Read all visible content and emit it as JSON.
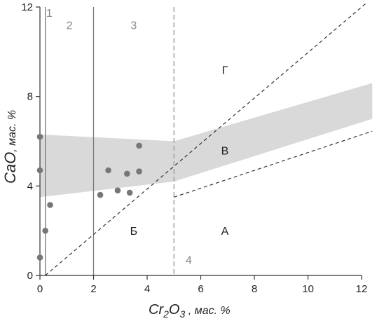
{
  "chart_data": {
    "type": "scatter",
    "xlim": [
      0,
      12
    ],
    "ylim": [
      0,
      12
    ],
    "x_ticks": [
      0,
      2,
      4,
      6,
      8,
      10,
      12
    ],
    "y_ticks": [
      0,
      4,
      8,
      12
    ],
    "x_tick_labels": [
      "0",
      "2",
      "4",
      "6",
      "8",
      "10",
      "12"
    ],
    "y_tick_labels": [
      "0",
      "4",
      "8",
      "12"
    ],
    "xlabel_main": "Cr",
    "xlabel_sub": "2",
    "xlabel_main2": "O",
    "xlabel_sub2": "3",
    "xlabel_suffix": " , мас. %",
    "ylabel_main": "CaO",
    "ylabel_suffix": ", мас. %",
    "points": [
      {
        "x": 0.0,
        "y": 6.2
      },
      {
        "x": 0.0,
        "y": 4.7
      },
      {
        "x": 0.0,
        "y": 0.8
      },
      {
        "x": 0.2,
        "y": 2.0
      },
      {
        "x": 0.38,
        "y": 3.15
      },
      {
        "x": 2.25,
        "y": 3.6
      },
      {
        "x": 2.55,
        "y": 4.7
      },
      {
        "x": 2.9,
        "y": 3.8
      },
      {
        "x": 3.25,
        "y": 4.55
      },
      {
        "x": 3.35,
        "y": 3.7
      },
      {
        "x": 3.7,
        "y": 5.8
      },
      {
        "x": 3.7,
        "y": 4.65
      }
    ],
    "bands": [
      {
        "polygon": [
          [
            0.0,
            6.3
          ],
          [
            5.0,
            6.0
          ],
          [
            12.4,
            8.6
          ],
          [
            12.4,
            7.0
          ],
          [
            5.0,
            4.2
          ],
          [
            0.0,
            3.5
          ]
        ],
        "color": "#d9d9d9"
      }
    ],
    "vertical_lines": [
      {
        "x": 0.2,
        "style": "solid",
        "color": "#777777"
      },
      {
        "x": 2.0,
        "style": "solid",
        "color": "#777777"
      },
      {
        "x": 5.0,
        "style": "dashed",
        "color": "#999999"
      }
    ],
    "dashed_lines": [
      {
        "points": [
          [
            0.2,
            0.0
          ],
          [
            12.2,
            12.2
          ]
        ],
        "color": "#333333"
      },
      {
        "points": [
          [
            5.0,
            3.5
          ],
          [
            12.4,
            6.45
          ]
        ],
        "color": "#333333"
      }
    ],
    "region_labels": [
      {
        "text": "Г",
        "x": 6.9,
        "y": 9.2
      },
      {
        "text": "В",
        "x": 6.9,
        "y": 5.6
      },
      {
        "text": "Б",
        "x": 3.5,
        "y": 2.0
      },
      {
        "text": "А",
        "x": 6.9,
        "y": 2.0
      }
    ],
    "zone_labels": [
      {
        "text": "1",
        "x": 0.35,
        "y": 11.75
      },
      {
        "text": "2",
        "x": 1.1,
        "y": 11.2
      },
      {
        "text": "3",
        "x": 3.5,
        "y": 11.2
      },
      {
        "text": "4",
        "x": 5.55,
        "y": 0.7
      }
    ],
    "colors": {
      "point": "#777777",
      "axis": "#333333",
      "band": "#d9d9d9"
    }
  }
}
